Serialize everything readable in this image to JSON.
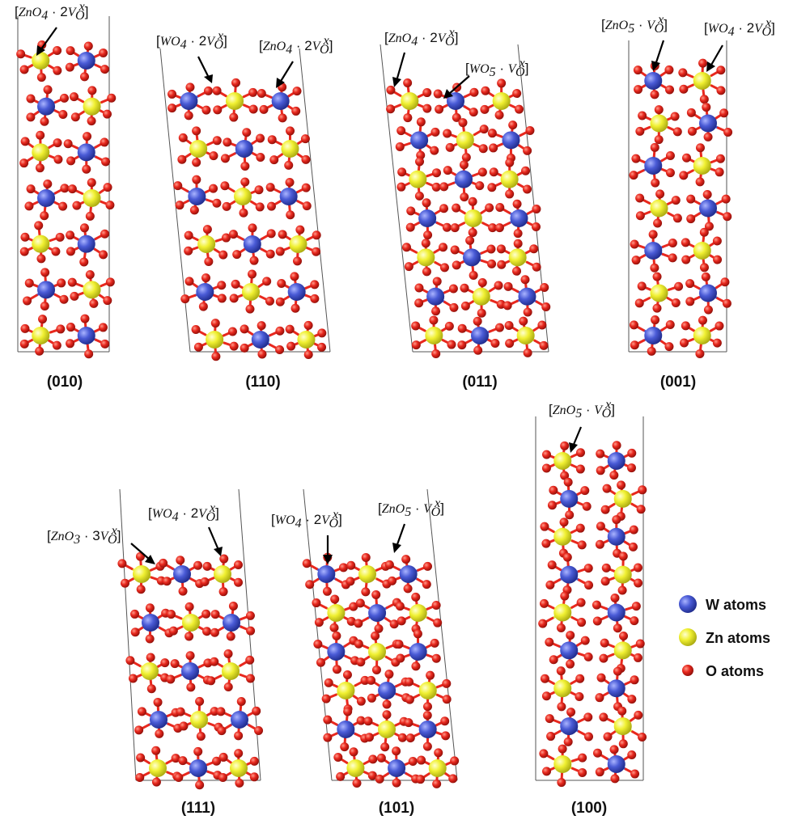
{
  "panels": [
    {
      "id": "010",
      "caption": "(010)",
      "defects": [
        "[ZnO4·2VOx]"
      ]
    },
    {
      "id": "110",
      "caption": "(110)",
      "defects": [
        "[WO4·2VOx]",
        "[ZnO4·2VOx]"
      ]
    },
    {
      "id": "011",
      "caption": "(011)",
      "defects": [
        "[ZnO4·2VOx]",
        "[WO5·VOx]"
      ]
    },
    {
      "id": "001",
      "caption": "(001)",
      "defects": [
        "[ZnO5·VOx]",
        "[WO4·2VOx]"
      ]
    },
    {
      "id": "111",
      "caption": "(111)",
      "defects": [
        "[ZnO3·3VOx]",
        "[WO4·2VOx]"
      ]
    },
    {
      "id": "101",
      "caption": "(101)",
      "defects": [
        "[WO4·2VOx]",
        "[ZnO5·VOx]"
      ]
    },
    {
      "id": "100",
      "caption": "(100)",
      "defects": [
        "[ZnO5·VOx]"
      ]
    }
  ],
  "legend": [
    {
      "label": "W atoms",
      "color": "#4a5bd6"
    },
    {
      "label": "Zn atoms",
      "color": "#f0f032"
    },
    {
      "label": "O atoms",
      "color": "#e8281e"
    }
  ],
  "colors": {
    "W": "#4a5bd6",
    "Zn": "#f0f032",
    "O": "#e8281e",
    "bond_W": "#4a5bd6",
    "bond_Zn": "#e6e640"
  }
}
